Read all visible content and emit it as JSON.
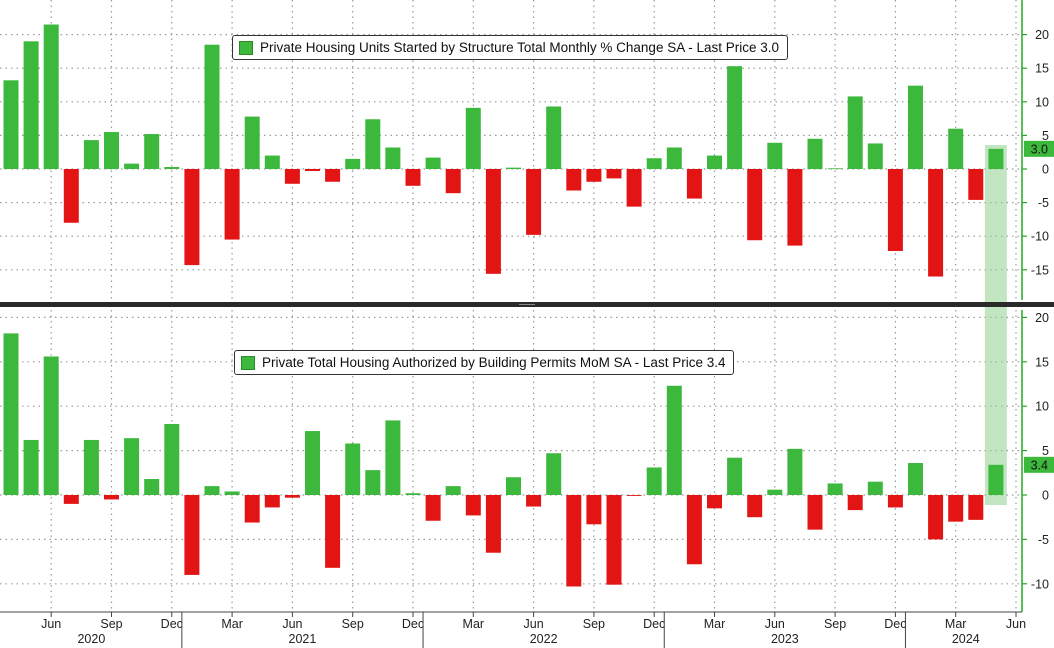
{
  "colors": {
    "positive": "#3cb83c",
    "negative": "#e31414",
    "axis": "#22aa22",
    "grid": "#9a9a9a",
    "highlight": "#8fd08f"
  },
  "chart_data": [
    {
      "type": "bar",
      "legend": "Private Housing Units Started by Structure Total Monthly % Change SA - Last Price 3.0",
      "last_price_label": "3.0",
      "ylim": [
        -19,
        24
      ],
      "yticks": [
        -15,
        -10,
        -5,
        0,
        5,
        10,
        15,
        20
      ],
      "grid": true,
      "legend_placement": "top-center",
      "x": [
        "2020-04",
        "2020-05",
        "2020-06",
        "2020-07",
        "2020-08",
        "2020-09",
        "2020-10",
        "2020-11",
        "2020-12",
        "2021-01",
        "2021-02",
        "2021-03",
        "2021-04",
        "2021-05",
        "2021-06",
        "2021-07",
        "2021-08",
        "2021-09",
        "2021-10",
        "2021-11",
        "2021-12",
        "2022-01",
        "2022-02",
        "2022-03",
        "2022-04",
        "2022-05",
        "2022-06",
        "2022-07",
        "2022-08",
        "2022-09",
        "2022-10",
        "2022-11",
        "2022-12",
        "2023-01",
        "2023-02",
        "2023-03",
        "2023-04",
        "2023-05",
        "2023-06",
        "2023-07",
        "2023-08",
        "2023-09",
        "2023-10",
        "2023-11",
        "2023-12",
        "2024-01",
        "2024-02",
        "2024-03",
        "2024-04",
        "2024-05",
        "2024-06"
      ],
      "values": [
        13.2,
        19.0,
        21.5,
        -8.0,
        4.3,
        5.5,
        0.8,
        5.2,
        0.3,
        -14.3,
        18.5,
        -10.5,
        7.8,
        2.0,
        -2.2,
        -0.3,
        -1.9,
        1.5,
        7.4,
        3.2,
        -2.5,
        1.7,
        -3.6,
        9.1,
        -15.6,
        0.2,
        -9.8,
        9.3,
        -3.2,
        -1.9,
        -1.4,
        -5.6,
        1.6,
        3.2,
        -4.4,
        2.0,
        15.3,
        -10.6,
        3.9,
        -11.4,
        4.5,
        0.1,
        10.8,
        3.8,
        -12.2,
        12.4,
        -16.0,
        6.0,
        -4.6,
        3.0,
        null
      ]
    },
    {
      "type": "bar",
      "legend": "Private Total Housing Authorized by Building Permits MoM SA - Last Price 3.4",
      "last_price_label": "3.4",
      "ylim": [
        -13,
        21.5
      ],
      "yticks": [
        -10,
        -5,
        0,
        5,
        10,
        15,
        20
      ],
      "grid": true,
      "legend_placement": "top-center",
      "x": [
        "2020-04",
        "2020-05",
        "2020-06",
        "2020-07",
        "2020-08",
        "2020-09",
        "2020-10",
        "2020-11",
        "2020-12",
        "2021-01",
        "2021-02",
        "2021-03",
        "2021-04",
        "2021-05",
        "2021-06",
        "2021-07",
        "2021-08",
        "2021-09",
        "2021-10",
        "2021-11",
        "2021-12",
        "2022-01",
        "2022-02",
        "2022-03",
        "2022-04",
        "2022-05",
        "2022-06",
        "2022-07",
        "2022-08",
        "2022-09",
        "2022-10",
        "2022-11",
        "2022-12",
        "2023-01",
        "2023-02",
        "2023-03",
        "2023-04",
        "2023-05",
        "2023-06",
        "2023-07",
        "2023-08",
        "2023-09",
        "2023-10",
        "2023-11",
        "2023-12",
        "2024-01",
        "2024-02",
        "2024-03",
        "2024-04",
        "2024-05",
        "2024-06"
      ],
      "values": [
        18.2,
        6.2,
        15.6,
        -1.0,
        6.2,
        -0.5,
        6.4,
        1.8,
        8.0,
        -9.0,
        1.0,
        0.4,
        -3.1,
        -1.4,
        -0.3,
        7.2,
        -8.2,
        5.8,
        2.8,
        8.4,
        0.2,
        -2.9,
        1.0,
        -2.3,
        -6.5,
        2.0,
        -1.3,
        4.7,
        -10.3,
        -3.3,
        -10.1,
        -0.1,
        3.1,
        12.3,
        -7.8,
        -1.5,
        4.2,
        -2.5,
        0.6,
        5.2,
        -3.9,
        1.3,
        -1.7,
        1.5,
        -1.4,
        3.6,
        -5.0,
        -3.0,
        -2.8,
        3.4,
        null
      ]
    }
  ],
  "x_axis": {
    "month_labels": [
      "Jun",
      "Sep",
      "Dec",
      "Mar",
      "Jun",
      "Sep",
      "Dec",
      "Mar",
      "Jun",
      "Sep",
      "Dec",
      "Mar",
      "Jun",
      "Sep",
      "Dec",
      "Mar",
      "Jun"
    ],
    "year_labels": [
      "2020",
      "2021",
      "2022",
      "2023",
      "2024"
    ]
  }
}
